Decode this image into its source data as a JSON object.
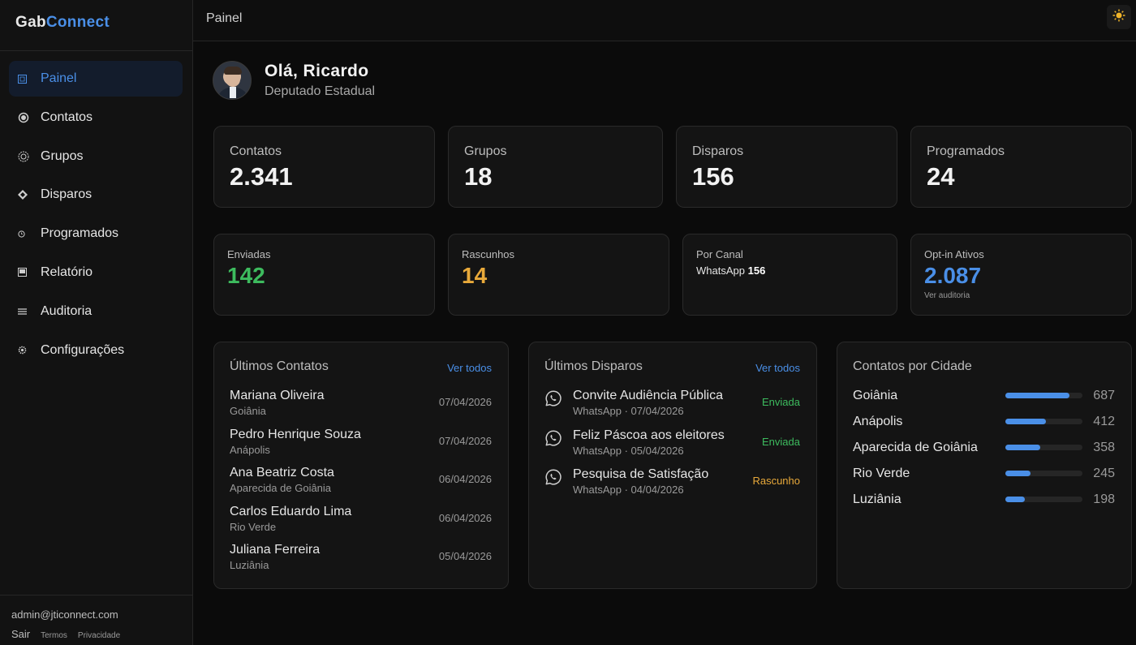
{
  "brand": {
    "part1": "Gab",
    "part2": "Connect"
  },
  "sidebar": {
    "items": [
      {
        "label": "Painel",
        "icon": "grid-icon",
        "active": true
      },
      {
        "label": "Contatos",
        "icon": "contacts-icon"
      },
      {
        "label": "Grupos",
        "icon": "groups-icon"
      },
      {
        "label": "Disparos",
        "icon": "send-icon"
      },
      {
        "label": "Programados",
        "icon": "clock-icon"
      },
      {
        "label": "Relatório",
        "icon": "report-icon"
      },
      {
        "label": "Auditoria",
        "icon": "list-icon"
      },
      {
        "label": "Configurações",
        "icon": "gear-icon"
      }
    ],
    "email": "admin@jticonnect.com",
    "logout": "Sair",
    "terms": "Termos",
    "privacy": "Privacidade"
  },
  "topbar": {
    "title": "Painel",
    "theme_icon": "sun-icon"
  },
  "greeting": {
    "title": "Olá, Ricardo",
    "role": "Deputado Estadual"
  },
  "stats": [
    {
      "label": "Contatos",
      "value": "2.341"
    },
    {
      "label": "Grupos",
      "value": "18"
    },
    {
      "label": "Disparos",
      "value": "156"
    },
    {
      "label": "Programados",
      "value": "24"
    }
  ],
  "stats2": {
    "sent": {
      "label": "Enviadas",
      "value": "142",
      "color": "#3dbb5e"
    },
    "drafts": {
      "label": "Rascunhos",
      "value": "14",
      "color": "#e8a93a"
    },
    "channel": {
      "label": "Por Canal",
      "channel": "WhatsApp",
      "count": "156"
    },
    "optin": {
      "label": "Opt-in Ativos",
      "value": "2.087",
      "color": "#4a8fe7",
      "link": "Ver auditoria"
    }
  },
  "latest_contacts": {
    "title": "Últimos Contatos",
    "link": "Ver todos",
    "rows": [
      {
        "name": "Mariana Oliveira",
        "city": "Goiânia",
        "date": "07/04/2026"
      },
      {
        "name": "Pedro Henrique Souza",
        "city": "Anápolis",
        "date": "07/04/2026"
      },
      {
        "name": "Ana Beatriz Costa",
        "city": "Aparecida de Goiânia",
        "date": "06/04/2026"
      },
      {
        "name": "Carlos Eduardo Lima",
        "city": "Rio Verde",
        "date": "06/04/2026"
      },
      {
        "name": "Juliana Ferreira",
        "city": "Luziânia",
        "date": "05/04/2026"
      }
    ]
  },
  "latest_dispatches": {
    "title": "Últimos Disparos",
    "link": "Ver todos",
    "rows": [
      {
        "name": "Convite Audiência Pública",
        "meta": "WhatsApp · 07/04/2026",
        "status": "Enviada",
        "status_color": "#3dbb5e"
      },
      {
        "name": "Feliz Páscoa aos eleitores",
        "meta": "WhatsApp · 05/04/2026",
        "status": "Enviada",
        "status_color": "#3dbb5e"
      },
      {
        "name": "Pesquisa de Satisfação",
        "meta": "WhatsApp · 04/04/2026",
        "status": "Rascunho",
        "status_color": "#e8a93a"
      }
    ]
  },
  "by_city": {
    "title": "Contatos por Cidade",
    "rows": [
      {
        "name": "Goiânia",
        "count": "687",
        "fraction": 0.83
      },
      {
        "name": "Anápolis",
        "count": "412",
        "fraction": 0.53
      },
      {
        "name": "Aparecida de Goiânia",
        "count": "358",
        "fraction": 0.45
      },
      {
        "name": "Rio Verde",
        "count": "245",
        "fraction": 0.33
      },
      {
        "name": "Luziânia",
        "count": "198",
        "fraction": 0.25
      }
    ]
  }
}
